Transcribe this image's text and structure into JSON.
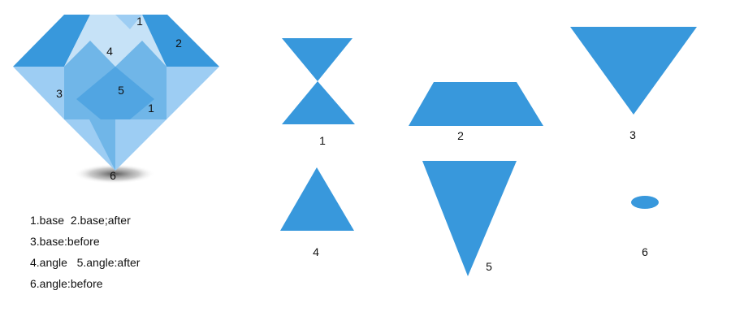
{
  "colors": {
    "primary": "#3898dc",
    "light": "#9dcdf3",
    "lighter": "#c6e2f7",
    "mid": "#70b6e8",
    "shadow": "#555555",
    "text": "#111111"
  },
  "gem": {
    "part_labels": [
      "1",
      "2",
      "3",
      "4",
      "5",
      "1",
      "6"
    ]
  },
  "shapes": [
    {
      "label": "1",
      "shape": "hourglass-icon"
    },
    {
      "label": "2",
      "shape": "trapezoid-icon"
    },
    {
      "label": "3",
      "shape": "inverted-triangle-icon"
    },
    {
      "label": "4",
      "shape": "triangle-icon"
    },
    {
      "label": "5",
      "shape": "tall-inverted-triangle-icon"
    },
    {
      "label": "6",
      "shape": "ellipse-icon"
    }
  ],
  "legend": {
    "lines": [
      "1.base  2.base;after",
      "3.base:before",
      "4.angle   5.angle:after",
      "6.angle:before"
    ]
  }
}
